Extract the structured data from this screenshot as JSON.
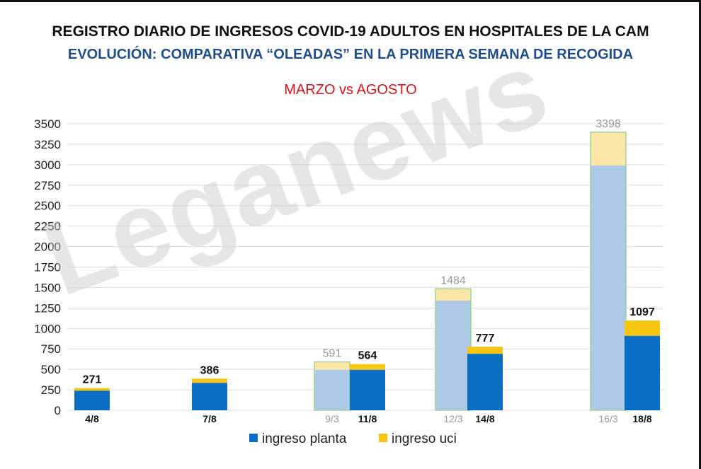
{
  "title": "REGISTRO DIARIO DE INGRESOS COVID-19 ADULTOS  EN HOSPITALES DE LA CAM",
  "subtitle": "EVOLUCIÓN: COMPARATIVA “OLEADAS” EN LA PRIMERA SEMANA DE RECOGIDA",
  "heading": "MARZO vs AGOSTO",
  "watermark": "Leganews",
  "colors": {
    "planta": "#0a6fc4",
    "uci": "#f6c512",
    "planta_faded": "#adc9e8",
    "uci_faded": "#fbe6a8",
    "grid": "#dcdcdc",
    "march_label": "#999999"
  },
  "chart_data": {
    "type": "bar",
    "stacked": true,
    "ylim": [
      0,
      3500
    ],
    "yticks": [
      0,
      250,
      500,
      750,
      1000,
      1250,
      1500,
      1750,
      2000,
      2250,
      2500,
      2750,
      3000,
      3250,
      3500
    ],
    "grid": true,
    "legend_position": "bottom",
    "series_names": [
      "ingreso planta",
      "ingreso uci"
    ],
    "bars": [
      {
        "label": "4/8",
        "group": 0,
        "period": "agosto",
        "planta": 240,
        "uci": 31,
        "total": 271
      },
      {
        "label": "7/8",
        "group": 1,
        "period": "agosto",
        "planta": 335,
        "uci": 51,
        "total": 386
      },
      {
        "label": "9/3",
        "group": 2,
        "period": "marzo",
        "planta": 495,
        "uci": 96,
        "total": 591
      },
      {
        "label": "11/8",
        "group": 2,
        "period": "agosto",
        "planta": 495,
        "uci": 69,
        "total": 564
      },
      {
        "label": "12/3",
        "group": 3,
        "period": "marzo",
        "planta": 1340,
        "uci": 144,
        "total": 1484
      },
      {
        "label": "14/8",
        "group": 3,
        "period": "agosto",
        "planta": 690,
        "uci": 87,
        "total": 777
      },
      {
        "label": "16/3",
        "group": 4,
        "period": "marzo",
        "planta": 2990,
        "uci": 408,
        "total": 3398
      },
      {
        "label": "18/8",
        "group": 4,
        "period": "agosto",
        "planta": 910,
        "uci": 187,
        "total": 1097
      }
    ]
  }
}
